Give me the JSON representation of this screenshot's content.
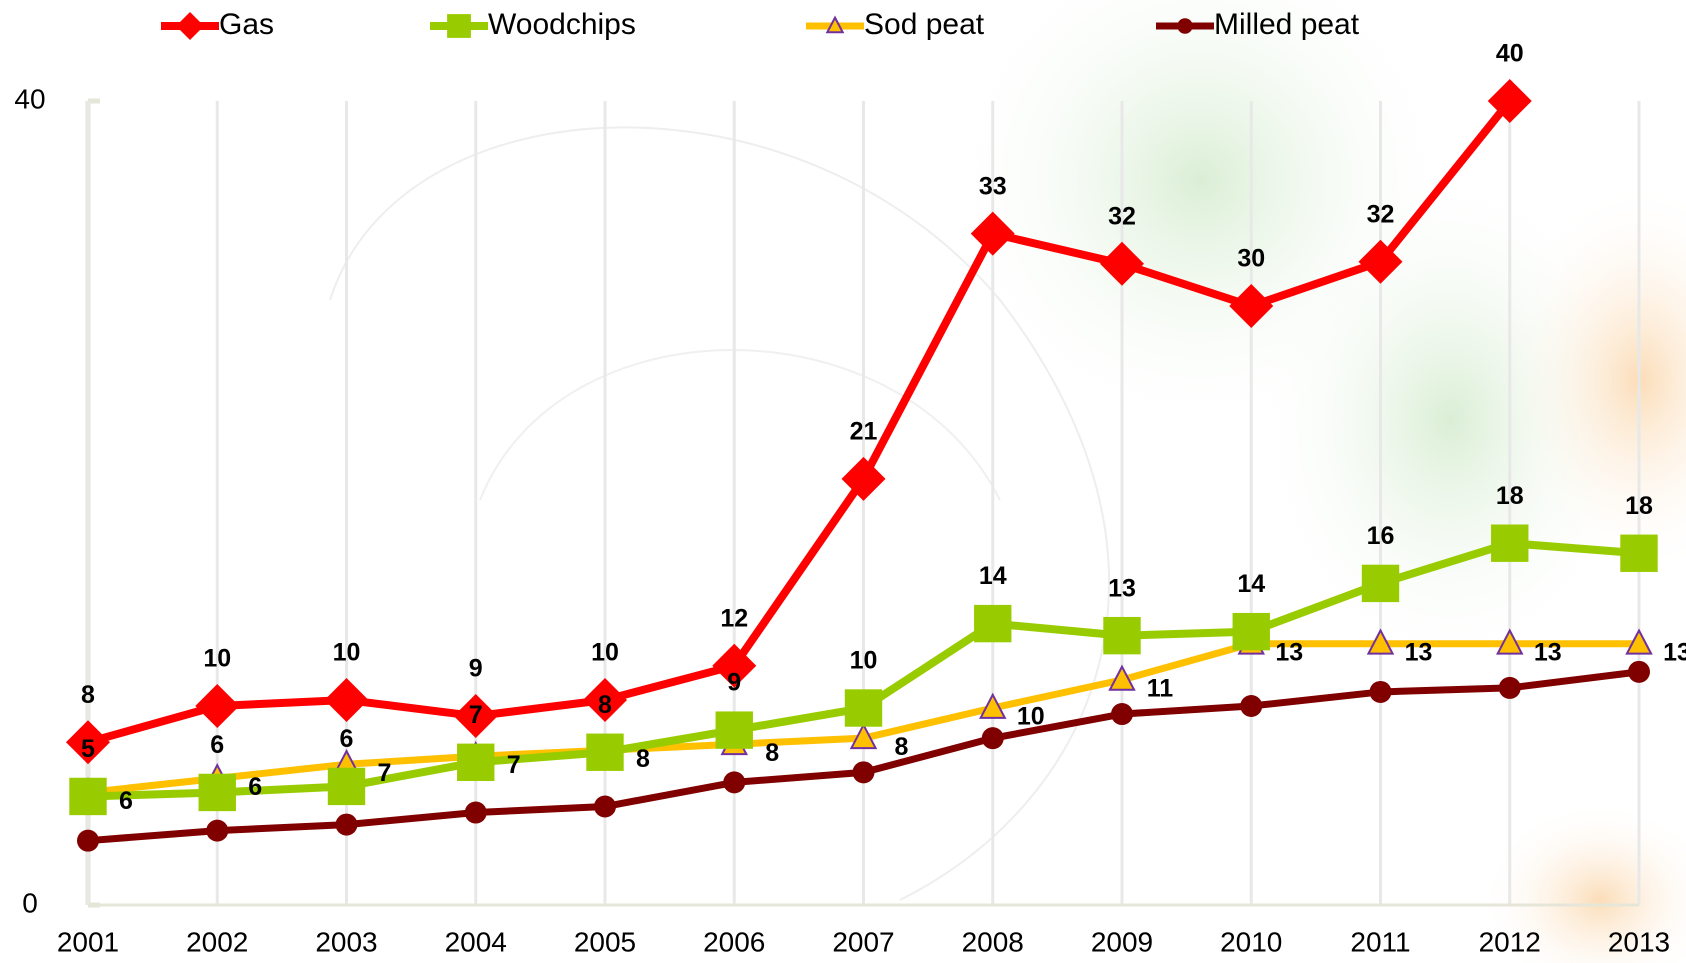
{
  "chart_data": {
    "type": "line",
    "categories": [
      "2001",
      "2002",
      "2003",
      "2004",
      "2005",
      "2006",
      "2007",
      "2008",
      "2009",
      "2010",
      "2011",
      "2012",
      "2013"
    ],
    "ylim": [
      0,
      40
    ],
    "yticks": [
      0,
      40
    ],
    "grid": true,
    "legend": "top",
    "series": [
      {
        "name": "Gas",
        "color": "#ff0000",
        "marker": "diamond",
        "values": [
          8.1,
          9.9,
          10.2,
          9.4,
          10.2,
          11.9,
          21.2,
          33.4,
          31.9,
          29.8,
          32.0,
          40,
          null
        ],
        "value_labels": [
          "8",
          "10",
          "10",
          "9",
          "10",
          "12",
          "21",
          "33",
          "32",
          "30",
          "32",
          "40",
          null
        ]
      },
      {
        "name": "Woodchips",
        "color": "#99cc00",
        "marker": "square",
        "values": [
          5.4,
          5.6,
          5.9,
          7.1,
          7.6,
          8.7,
          9.8,
          14.0,
          13.4,
          13.6,
          16.0,
          18.0,
          17.5
        ],
        "value_labels": [
          "5",
          "6",
          "6",
          "7",
          "8",
          "9",
          "10",
          "14",
          "13",
          "14",
          "16",
          "18",
          "18"
        ]
      },
      {
        "name": "Sod peat",
        "color": "#ffc000",
        "marker": "triangle",
        "values": [
          5.6,
          6.3,
          7.0,
          7.4,
          7.7,
          8.0,
          8.3,
          9.8,
          11.2,
          13.0,
          13.0,
          13.0,
          13.0
        ],
        "value_labels": [
          "6",
          "6",
          "7",
          "7",
          "8",
          "8",
          "8",
          "10",
          "11",
          "13",
          "13",
          "13",
          "13"
        ]
      },
      {
        "name": "Milled peat",
        "color": "#800000",
        "marker": "circle",
        "values": [
          3.2,
          3.7,
          4.0,
          4.6,
          4.9,
          6.1,
          6.6,
          8.3,
          9.5,
          9.9,
          10.6,
          10.8,
          11.6
        ]
      }
    ]
  }
}
